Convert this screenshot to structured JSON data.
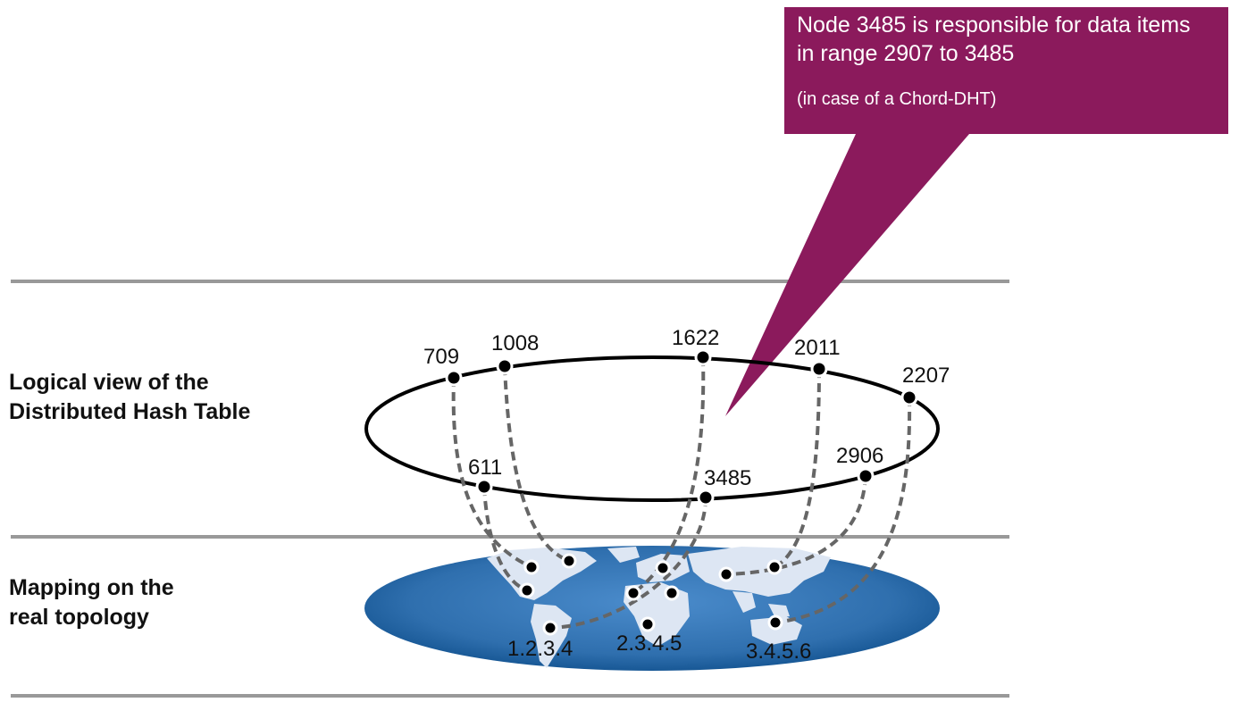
{
  "callout": {
    "text": "Node 3485 is responsible for data items in range 2907 to 3485",
    "note": "(in case of a Chord-DHT)",
    "color": "#8b1a5c"
  },
  "labels": {
    "logical_line1": "Logical view of the",
    "logical_line2": "Distributed Hash Table",
    "mapping_line1": "Mapping on the",
    "mapping_line2": "real topology"
  },
  "ring_nodes": [
    {
      "id": "709",
      "label": "709"
    },
    {
      "id": "1008",
      "label": "1008"
    },
    {
      "id": "1622",
      "label": "1622"
    },
    {
      "id": "2011",
      "label": "2011"
    },
    {
      "id": "2207",
      "label": "2207"
    },
    {
      "id": "2906",
      "label": "2906"
    },
    {
      "id": "3485",
      "label": "3485"
    },
    {
      "id": "611",
      "label": "611"
    }
  ],
  "ip_labels": [
    "1.2.3.4",
    "2.3.4.5",
    "3.4.5.6"
  ],
  "colors": {
    "map_ocean": "#2f6fae",
    "map_land": "#dde6f3",
    "divider": "#999999",
    "link": "#666666"
  }
}
